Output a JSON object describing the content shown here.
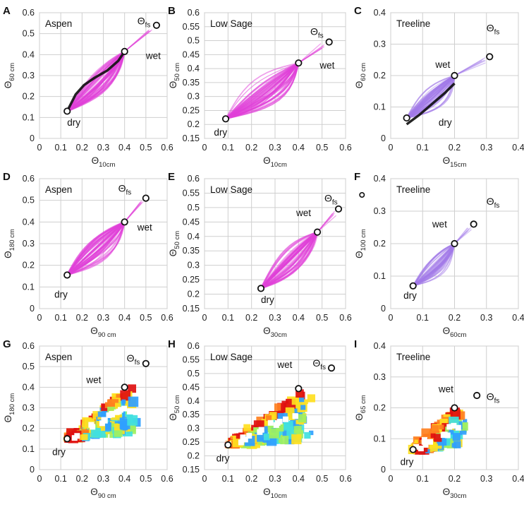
{
  "figure": {
    "theta_symbol": "Θ",
    "theta_fs_subscript": "fs",
    "colors": {
      "magenta": "#e040d8",
      "lavender": "#a27ae8",
      "black": "#111111",
      "grid": "#cfcfcf"
    }
  },
  "chart_data": [
    {
      "letter": "A",
      "type": "scatter",
      "site": "Aspen",
      "style": "magenta",
      "xlabel_sub": "10cm",
      "ylabel_sub": "60 cm",
      "xlim": [
        0,
        0.6
      ],
      "ylim": [
        0,
        0.6
      ],
      "xticks": [
        "0",
        "0.1",
        "0.2",
        "0.3",
        "0.4",
        "0.5",
        "0.6"
      ],
      "yticks": [
        "0",
        "0.1",
        "0.2",
        "0.3",
        "0.4",
        "0.5",
        "0.6"
      ],
      "points": [
        [
          0.13,
          0.13
        ],
        [
          0.4,
          0.415
        ],
        [
          0.55,
          0.54
        ]
      ],
      "fs_label_at": [
        0.46,
        0.545
      ],
      "wet_label": "wet",
      "wet_at": [
        0.5,
        0.38
      ],
      "dry_label": "dry",
      "dry_at": [
        0.13,
        0.06
      ],
      "trace": [
        [
          0.13,
          0.13
        ],
        [
          0.17,
          0.21
        ],
        [
          0.21,
          0.255
        ],
        [
          0.26,
          0.29
        ],
        [
          0.32,
          0.325
        ],
        [
          0.37,
          0.37
        ],
        [
          0.4,
          0.415
        ]
      ],
      "trace_color": "black"
    },
    {
      "letter": "B",
      "type": "scatter",
      "site": "Low Sage",
      "style": "magenta",
      "xlabel_sub": "10cm",
      "ylabel_sub": "50 cm",
      "xlim": [
        0,
        0.6
      ],
      "ylim": [
        0.15,
        0.6
      ],
      "xticks": [
        "0",
        "0.1",
        "0.2",
        "0.3",
        "0.4",
        "0.5",
        "0.6"
      ],
      "yticks": [
        "0.15",
        "0.2",
        "0.25",
        "0.3",
        "0.35",
        "0.4",
        "0.45",
        "0.5",
        "0.55",
        "0.6"
      ],
      "points": [
        [
          0.09,
          0.22
        ],
        [
          0.4,
          0.42
        ],
        [
          0.53,
          0.495
        ]
      ],
      "fs_label_at": [
        0.45,
        0.52
      ],
      "wet_label": "wet",
      "wet_at": [
        0.49,
        0.4
      ],
      "dry_label": "dry",
      "dry_at": [
        0.04,
        0.16
      ],
      "trace": [],
      "trace_color": "black"
    },
    {
      "letter": "C",
      "type": "scatter",
      "site": "Treeline",
      "style": "lavender",
      "xlabel_sub": "15cm",
      "ylabel_sub": "60 cm",
      "xlim": [
        0,
        0.4
      ],
      "ylim": [
        0,
        0.4
      ],
      "xticks": [
        "0",
        "0.1",
        "0.2",
        "0.3",
        "0.4"
      ],
      "yticks": [
        "0",
        "0.1",
        "0.2",
        "0.3",
        "0.4"
      ],
      "points": [
        [
          0.05,
          0.065
        ],
        [
          0.2,
          0.2
        ],
        [
          0.31,
          0.26
        ]
      ],
      "fs_label_at": [
        0.3,
        0.34
      ],
      "wet_label": "wet",
      "wet_at": [
        0.14,
        0.225
      ],
      "dry_label": "dry",
      "dry_at": [
        0.15,
        0.04
      ],
      "trace": [
        [
          0.05,
          0.045
        ],
        [
          0.09,
          0.075
        ],
        [
          0.13,
          0.11
        ],
        [
          0.17,
          0.145
        ],
        [
          0.2,
          0.175
        ]
      ],
      "trace_color": "black"
    },
    {
      "letter": "D",
      "type": "scatter",
      "site": "Aspen",
      "style": "magenta",
      "xlabel_sub": "90 cm",
      "ylabel_sub": "180 cm",
      "xlim": [
        0,
        0.6
      ],
      "ylim": [
        0,
        0.6
      ],
      "xticks": [
        "0",
        "0.1",
        "0.2",
        "0.3",
        "0.4",
        "0.5",
        "0.6"
      ],
      "yticks": [
        "0",
        "0.1",
        "0.2",
        "0.3",
        "0.4",
        "0.5",
        "0.6"
      ],
      "points": [
        [
          0.13,
          0.155
        ],
        [
          0.4,
          0.4
        ],
        [
          0.5,
          0.51
        ]
      ],
      "fs_label_at": [
        0.37,
        0.54
      ],
      "wet_label": "wet",
      "wet_at": [
        0.46,
        0.36
      ],
      "dry_label": "dry",
      "dry_at": [
        0.07,
        0.05
      ],
      "trace": [],
      "trace_color": "black"
    },
    {
      "letter": "E",
      "type": "scatter",
      "site": "Low Sage",
      "style": "magenta",
      "xlabel_sub": "30cm",
      "ylabel_sub": "50 cm",
      "xlim": [
        0,
        0.6
      ],
      "ylim": [
        0.15,
        0.6
      ],
      "xticks": [
        "0",
        "0.1",
        "0.2",
        "0.3",
        "0.4",
        "0.5",
        "0.6"
      ],
      "yticks": [
        "0.15",
        "0.2",
        "0.25",
        "0.3",
        "0.35",
        "0.4",
        "0.45",
        "0.5",
        "0.55",
        "0.6"
      ],
      "points": [
        [
          0.24,
          0.22
        ],
        [
          0.48,
          0.415
        ],
        [
          0.57,
          0.495
        ]
      ],
      "fs_label_at": [
        0.51,
        0.52
      ],
      "wet_label": "wet",
      "wet_at": [
        0.39,
        0.47
      ],
      "dry_label": "dry",
      "dry_at": [
        0.24,
        0.17
      ],
      "trace": [],
      "trace_color": "black"
    },
    {
      "letter": "F",
      "type": "scatter",
      "site": "Treeline",
      "style": "lavender",
      "xlabel_sub": "60cm",
      "ylabel_sub": "100 cm",
      "xlim": [
        0,
        0.4
      ],
      "ylim": [
        0,
        0.4
      ],
      "xticks": [
        "0",
        "0.1",
        "0.2",
        "0.3",
        "0.4"
      ],
      "yticks": [
        "0",
        "0.1",
        "0.2",
        "0.3",
        "0.4"
      ],
      "points": [
        [
          0.07,
          0.07
        ],
        [
          0.2,
          0.2
        ],
        [
          0.26,
          0.26
        ]
      ],
      "fs_label_at": [
        0.3,
        0.32
      ],
      "wet_label": "wet",
      "wet_at": [
        0.13,
        0.25
      ],
      "dry_label": "dry",
      "dry_at": [
        0.04,
        0.03
      ],
      "trace": [],
      "trace_color": "black",
      "stray_mark": [
        -0.09,
        0.35
      ]
    },
    {
      "letter": "G",
      "type": "heatmap",
      "site": "Aspen",
      "style": "heat",
      "xlabel_sub": "90 cm",
      "ylabel_sub": "180 cm",
      "xlim": [
        0,
        0.6
      ],
      "ylim": [
        0,
        0.6
      ],
      "xticks": [
        "0",
        "0.1",
        "0.2",
        "0.3",
        "0.4",
        "0.5",
        "0.6"
      ],
      "yticks": [
        "0",
        "0.1",
        "0.2",
        "0.3",
        "0.4",
        "0.5",
        "0.6"
      ],
      "points": [
        [
          0.13,
          0.15
        ],
        [
          0.4,
          0.4
        ],
        [
          0.5,
          0.515
        ]
      ],
      "fs_label_at": [
        0.41,
        0.525
      ],
      "wet_label": "wet",
      "wet_at": [
        0.22,
        0.42
      ],
      "dry_label": "dry",
      "dry_at": [
        0.06,
        0.07
      ],
      "trace": [],
      "trace_color": "black"
    },
    {
      "letter": "H",
      "type": "heatmap",
      "site": "Low Sage",
      "style": "heat",
      "xlabel_sub": "10cm",
      "ylabel_sub": "50 cm",
      "xlim": [
        0,
        0.6
      ],
      "ylim": [
        0.15,
        0.6
      ],
      "xticks": [
        "0",
        "0.1",
        "0.2",
        "0.3",
        "0.4",
        "0.5",
        "0.6"
      ],
      "yticks": [
        "0.15",
        "0.2",
        "0.25",
        "0.3",
        "0.35",
        "0.4",
        "0.45",
        "0.5",
        "0.55",
        "0.6"
      ],
      "points": [
        [
          0.1,
          0.24
        ],
        [
          0.4,
          0.445
        ],
        [
          0.54,
          0.52
        ]
      ],
      "fs_label_at": [
        0.46,
        0.525
      ],
      "wet_label": "wet",
      "wet_at": [
        0.31,
        0.52
      ],
      "dry_label": "dry",
      "dry_at": [
        0.05,
        0.18
      ],
      "trace": [],
      "trace_color": "black"
    },
    {
      "letter": "I",
      "type": "heatmap",
      "site": "Treeline",
      "style": "heat",
      "xlabel_sub": "30cm",
      "ylabel_sub": "65 cm",
      "xlim": [
        0,
        0.4
      ],
      "ylim": [
        0,
        0.4
      ],
      "xticks": [
        "0",
        "0.1",
        "0.2",
        "0.3",
        "0.4"
      ],
      "yticks": [
        "0",
        "0.1",
        "0.2",
        "0.3",
        "0.4"
      ],
      "points": [
        [
          0.07,
          0.065
        ],
        [
          0.2,
          0.2
        ],
        [
          0.27,
          0.24
        ]
      ],
      "fs_label_at": [
        0.3,
        0.225
      ],
      "wet_label": "wet",
      "wet_at": [
        0.15,
        0.25
      ],
      "dry_label": "dry",
      "dry_at": [
        0.03,
        0.015
      ],
      "trace": [],
      "trace_color": "black"
    }
  ]
}
